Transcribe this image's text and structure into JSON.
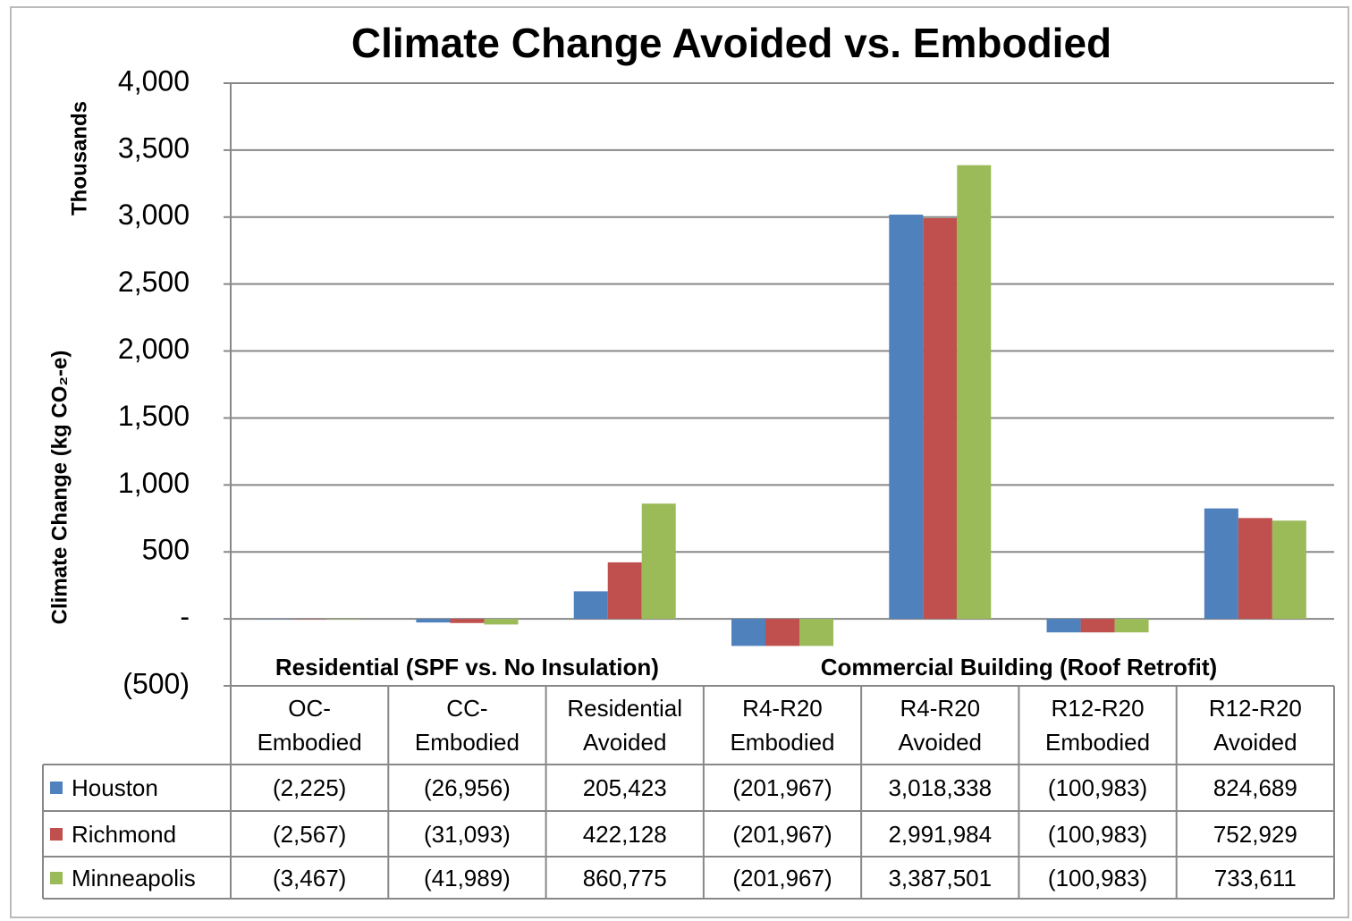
{
  "chart_data": {
    "type": "bar",
    "title": "Climate Change Avoided vs. Embodied",
    "y_label": "Climate Change (kg CO₂-e)",
    "y_unit": "Thousands",
    "groups": [
      {
        "label": "Residential (SPF vs. No Insulation)",
        "span": 3
      },
      {
        "label": "Commercial Building (Roof Retrofit)",
        "span": 4
      }
    ],
    "categories": [
      "OC-\nEmbodied",
      "CC-\nEmbodied",
      "Residential\nAvoided",
      "R4-R20\nEmbodied",
      "R4-R20\nAvoided",
      "R12-R20\nEmbodied",
      "R12-R20\nAvoided"
    ],
    "series": [
      {
        "name": "Houston",
        "color": "#4f81bd",
        "values": [
          -2.225,
          -26.956,
          205.423,
          -201.967,
          3018.338,
          -100.983,
          824.689
        ],
        "value_labels": [
          "(2,225)",
          "(26,956)",
          "205,423",
          "(201,967)",
          "3,018,338",
          "(100,983)",
          "824,689"
        ]
      },
      {
        "name": "Richmond",
        "color": "#c0504d",
        "values": [
          -2.567,
          -31.093,
          422.128,
          -201.967,
          2991.984,
          -100.983,
          752.929
        ],
        "value_labels": [
          "(2,567)",
          "(31,093)",
          "422,128",
          "(201,967)",
          "2,991,984",
          "(100,983)",
          "752,929"
        ]
      },
      {
        "name": "Minneapolis",
        "color": "#9bbb59",
        "values": [
          -3.467,
          -41.989,
          860.775,
          -201.967,
          3387.501,
          -100.983,
          733.611
        ],
        "value_labels": [
          "(3,467)",
          "(41,989)",
          "860,775",
          "(201,967)",
          "3,387,501",
          "(100,983)",
          "733,611"
        ]
      }
    ],
    "ylim": [
      -500,
      4000
    ],
    "yticks": [
      {
        "value": -500,
        "label": "(500)"
      },
      {
        "value": 0,
        "label": "-"
      },
      500,
      {
        "value": 1000,
        "label": "1,000"
      },
      {
        "value": 1500,
        "label": "1,500"
      },
      {
        "value": 2000,
        "label": "2,000"
      },
      {
        "value": 2500,
        "label": "2,500"
      },
      {
        "value": 3000,
        "label": "3,000"
      },
      {
        "value": 3500,
        "label": "3,500"
      },
      {
        "value": 4000,
        "label": "4,000"
      }
    ],
    "grid": true
  }
}
